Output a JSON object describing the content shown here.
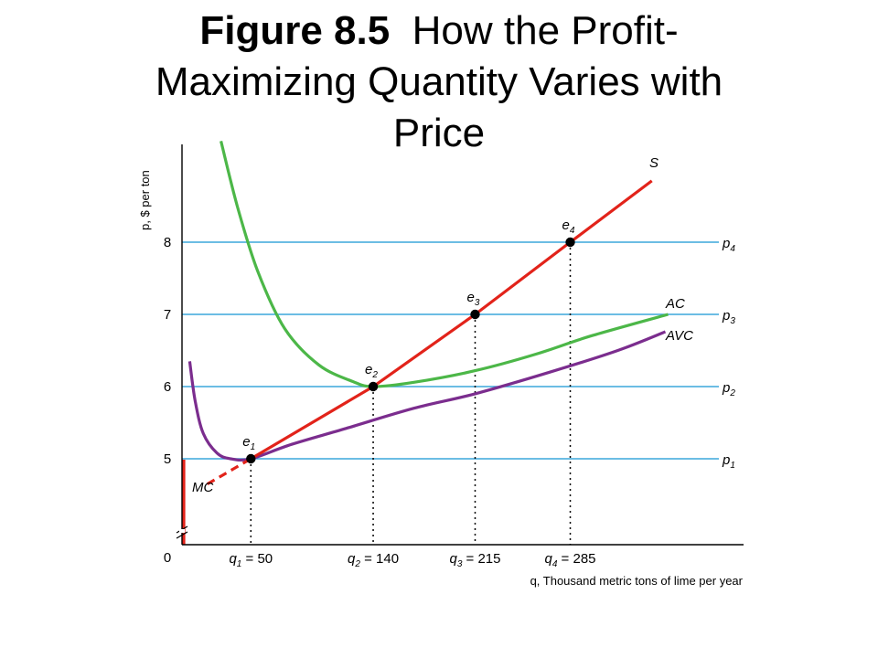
{
  "title": {
    "bold": "Figure 8.5",
    "line1_rest": "How the Profit-",
    "line2": "Maximizing Quantity Varies with",
    "line3": "Price"
  },
  "chart_data": {
    "type": "line",
    "ylabel": "p, $ per ton",
    "xlabel": "q, Thousand metric tons of lime per year",
    "origin_label": "0",
    "y_ticks": [
      5,
      6,
      7,
      8
    ],
    "colors": {
      "price_lines": "#3ba7dc",
      "supply": "#e2231a",
      "average_cost": "#4cb748",
      "avc": "#7b2d8e",
      "guides": "#000000"
    },
    "price_lines": [
      {
        "name": "p",
        "sub": "1",
        "value": 5
      },
      {
        "name": "p",
        "sub": "2",
        "value": 6
      },
      {
        "name": "p",
        "sub": "3",
        "value": 7
      },
      {
        "name": "p",
        "sub": "4",
        "value": 8
      }
    ],
    "points": [
      {
        "name": "e",
        "sub": "1",
        "q_name": "q",
        "q_sub": "1",
        "q_text": " = 50",
        "x": 50,
        "y": 5
      },
      {
        "name": "e",
        "sub": "2",
        "q_name": "q",
        "q_sub": "2",
        "q_text": " = 140",
        "x": 140,
        "y": 6
      },
      {
        "name": "e",
        "sub": "3",
        "q_name": "q",
        "q_sub": "3",
        "q_text": " = 215",
        "x": 215,
        "y": 7
      },
      {
        "name": "e",
        "sub": "4",
        "q_name": "q",
        "q_sub": "4",
        "q_text": " = 285",
        "x": 285,
        "y": 8
      }
    ],
    "series": [
      {
        "name": "S",
        "points": [
          [
            50,
            5
          ],
          [
            140,
            6
          ],
          [
            215,
            7
          ],
          [
            285,
            8
          ],
          [
            345,
            8.85
          ]
        ]
      },
      {
        "name": "MC",
        "points": [
          [
            18,
            4.65
          ],
          [
            50,
            5
          ]
        ]
      },
      {
        "name": "AC",
        "points": [
          [
            28,
            9.4
          ],
          [
            40,
            8.5
          ],
          [
            55,
            7.6
          ],
          [
            75,
            6.8
          ],
          [
            100,
            6.3
          ],
          [
            125,
            6.07
          ],
          [
            140,
            6.0
          ],
          [
            170,
            6.06
          ],
          [
            215,
            6.22
          ],
          [
            260,
            6.45
          ],
          [
            300,
            6.7
          ],
          [
            357,
            7.0
          ]
        ]
      },
      {
        "name": "AVC",
        "points": [
          [
            5,
            6.35
          ],
          [
            9,
            5.8
          ],
          [
            15,
            5.35
          ],
          [
            25,
            5.08
          ],
          [
            35,
            5.0
          ],
          [
            50,
            5.0
          ],
          [
            80,
            5.2
          ],
          [
            120,
            5.42
          ],
          [
            170,
            5.7
          ],
          [
            215,
            5.9
          ],
          [
            270,
            6.2
          ],
          [
            320,
            6.5
          ],
          [
            355,
            6.76
          ]
        ]
      }
    ]
  }
}
